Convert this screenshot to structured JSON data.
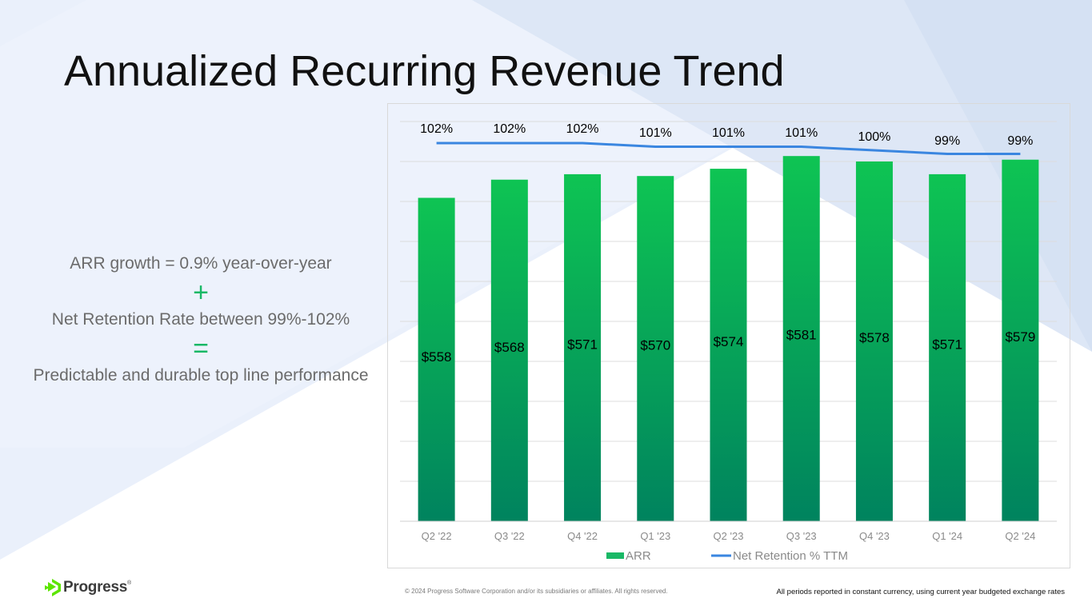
{
  "slide": {
    "title": "Annualized Recurring Revenue Trend",
    "left_text": {
      "line1": "ARR growth = 0.9% year-over-year",
      "plus": "+",
      "line2": "Net Retention Rate between 99%-102%",
      "equals": "=",
      "line3": "Predictable and durable top line performance"
    },
    "footer": {
      "logo_text": "Progress",
      "logo_reg": "®",
      "copyright": "© 2024 Progress Software Corporation and/or its subsidiaries or affiliates. All rights reserved.",
      "note": "All periods reported in constant currency, using current year budgeted exchange rates"
    }
  },
  "colors": {
    "bar_top": "#0ec453",
    "bar_bottom": "#00835e",
    "line": "#3a86e0",
    "accent": "#19b866",
    "grid": "#dcdcdc"
  },
  "chart_data": {
    "type": "bar",
    "categories": [
      "Q2 '22",
      "Q3 '22",
      "Q4 '22",
      "Q1 '23",
      "Q2 '23",
      "Q3 '23",
      "Q4 '23",
      "Q1 '24",
      "Q2 '24"
    ],
    "series": [
      {
        "name": "ARR",
        "type": "bar",
        "values": [
          558,
          568,
          571,
          570,
          574,
          581,
          578,
          571,
          579
        ],
        "labels": [
          "$558",
          "$568",
          "$571",
          "$570",
          "$574",
          "$581",
          "$578",
          "$571",
          "$579"
        ]
      },
      {
        "name": "Net Retention % TTM",
        "type": "line",
        "values": [
          102,
          102,
          102,
          101,
          101,
          101,
          100,
          99,
          99
        ],
        "labels": [
          "102%",
          "102%",
          "102%",
          "101%",
          "101%",
          "101%",
          "100%",
          "99%",
          "99%"
        ]
      }
    ],
    "ylim": [
      380,
      600
    ],
    "gridlines": 10,
    "legend": "bottom-center",
    "title": "",
    "xlabel": "",
    "ylabel": ""
  }
}
